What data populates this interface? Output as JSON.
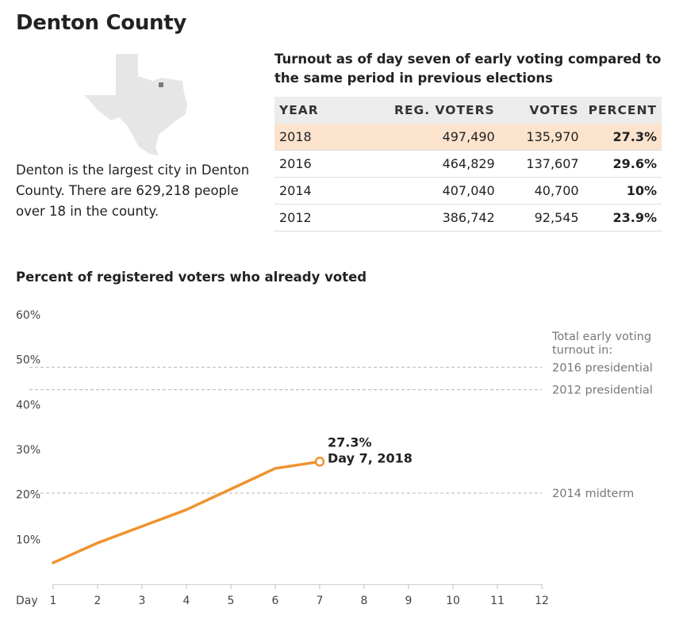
{
  "page": {
    "title": "Denton County",
    "description": "Denton is the largest city in Denton County. There are 629,218 people over 18 in the county."
  },
  "table": {
    "title": "Turnout as of day seven of early voting compared to the same period in previous elections",
    "headers": [
      "YEAR",
      "REG. VOTERS",
      "VOTES",
      "PERCENT"
    ],
    "rows": [
      {
        "year": "2018",
        "reg_voters": "497,490",
        "votes": "135,970",
        "percent": "27.3%",
        "highlight": true
      },
      {
        "year": "2016",
        "reg_voters": "464,829",
        "votes": "137,607",
        "percent": "29.6%",
        "highlight": false
      },
      {
        "year": "2014",
        "reg_voters": "407,040",
        "votes": "40,700",
        "percent": "10%",
        "highlight": false
      },
      {
        "year": "2012",
        "reg_voters": "386,742",
        "votes": "92,545",
        "percent": "23.9%",
        "highlight": false
      }
    ]
  },
  "colors": {
    "line": "#f0922f",
    "highlight_row": "#fbe3cd",
    "reference": "#b5b5b5",
    "map_fill": "#e6e6e6",
    "county_marker": "#7a7a7a"
  },
  "chart_data": {
    "type": "line",
    "title": "Percent of registered voters who already voted",
    "xlabel": "Day",
    "ylabel": "",
    "x_ticks": [
      1,
      2,
      3,
      4,
      5,
      6,
      7,
      8,
      9,
      10,
      11,
      12
    ],
    "y_ticks": [
      10,
      20,
      30,
      40,
      50,
      60
    ],
    "y_tick_labels": [
      "10%",
      "20%",
      "30%",
      "40%",
      "50%",
      "60%"
    ],
    "xlim": [
      1,
      12
    ],
    "ylim": [
      0,
      60
    ],
    "grid": false,
    "series": [
      {
        "x": [
          1,
          2,
          3,
          4,
          5,
          6,
          7
        ],
        "y": [
          4.8,
          9.2,
          12.9,
          16.6,
          21.2,
          25.8,
          27.3
        ]
      }
    ],
    "end_label": {
      "line1": "27.3%",
      "line2": "Day 7, 2018"
    },
    "reference_header": "Total early voting turnout in:",
    "reference_lines": [
      {
        "label": "2016 presidential",
        "y": 48.3
      },
      {
        "label": "2012 presidential",
        "y": 43.3
      },
      {
        "label": "2014 midterm",
        "y": 20.3
      }
    ]
  }
}
